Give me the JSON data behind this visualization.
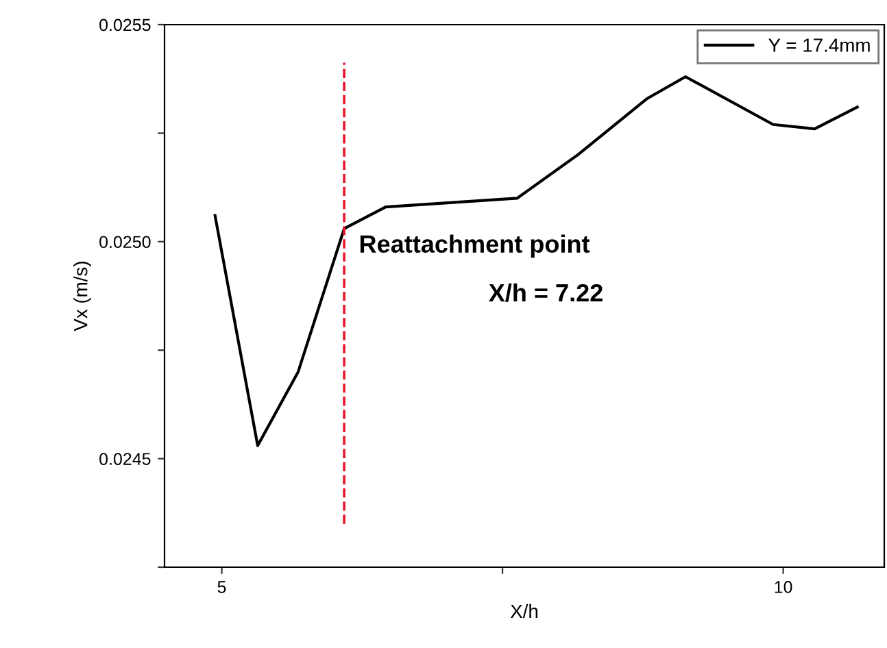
{
  "chart_data": {
    "type": "line",
    "xlabel": "X/h",
    "ylabel": "Vx (m/s)",
    "x": [
      4.94,
      5.32,
      5.68,
      6.09,
      6.46,
      7.63,
      8.17,
      8.79,
      9.13,
      9.91,
      10.28,
      10.66
    ],
    "series": [
      {
        "name": "Y = 17.4mm",
        "color": "#000000",
        "values": [
          0.02506,
          0.02453,
          0.0247,
          0.02503,
          0.02508,
          0.0251,
          0.0252,
          0.02533,
          0.02538,
          0.02527,
          0.02526,
          0.02531
        ]
      }
    ],
    "xlim": [
      4.49,
      10.9
    ],
    "ylim": [
      0.02425,
      0.0255
    ],
    "xticks": [
      5,
      {
        "value": 7.5,
        "label": null
      },
      10
    ],
    "yticks": [
      {
        "value": 0.02425,
        "label": null
      },
      {
        "value": 0.0245,
        "label": "0.0245"
      },
      {
        "value": 0.02475,
        "label": null
      },
      {
        "value": 0.025,
        "label": "0.0250"
      },
      {
        "value": 0.02525,
        "label": null
      },
      {
        "value": 0.0255,
        "label": "0.0255"
      }
    ],
    "ref_lines": [
      {
        "axis": "x",
        "value": 6.09,
        "color": "#e8162b",
        "line_style": "dashed"
      }
    ],
    "annotations": [
      "Reattachment point",
      "X/h = 7.22"
    ],
    "legend": "top right",
    "grid": false,
    "marker": "none",
    "line_style": "solid"
  }
}
